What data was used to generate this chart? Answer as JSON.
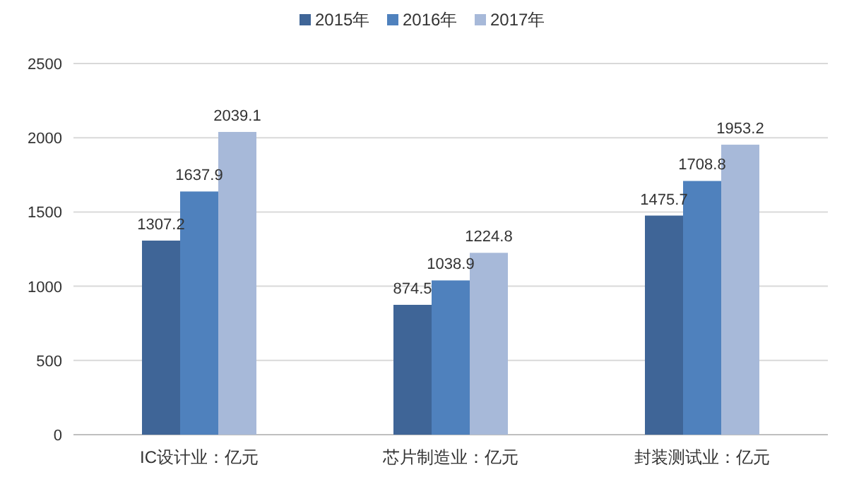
{
  "chart_data": {
    "type": "bar",
    "categories": [
      "IC设计业：亿元",
      "芯片制造业：亿元",
      "封装测试业：亿元"
    ],
    "series": [
      {
        "name": "2015年",
        "color": "#3f6597",
        "values": [
          1307.2,
          874.5,
          1475.7
        ]
      },
      {
        "name": "2016年",
        "color": "#4f81bd",
        "values": [
          1637.9,
          1038.9,
          1708.8
        ]
      },
      {
        "name": "2017年",
        "color": "#a7b9d9",
        "values": [
          2039.1,
          1224.8,
          1953.2
        ]
      }
    ],
    "ylim": [
      0,
      2500
    ],
    "yticks": [
      0,
      500,
      1000,
      1500,
      2000,
      2500
    ],
    "grid": "y",
    "legend": "top",
    "data_labels": true
  }
}
